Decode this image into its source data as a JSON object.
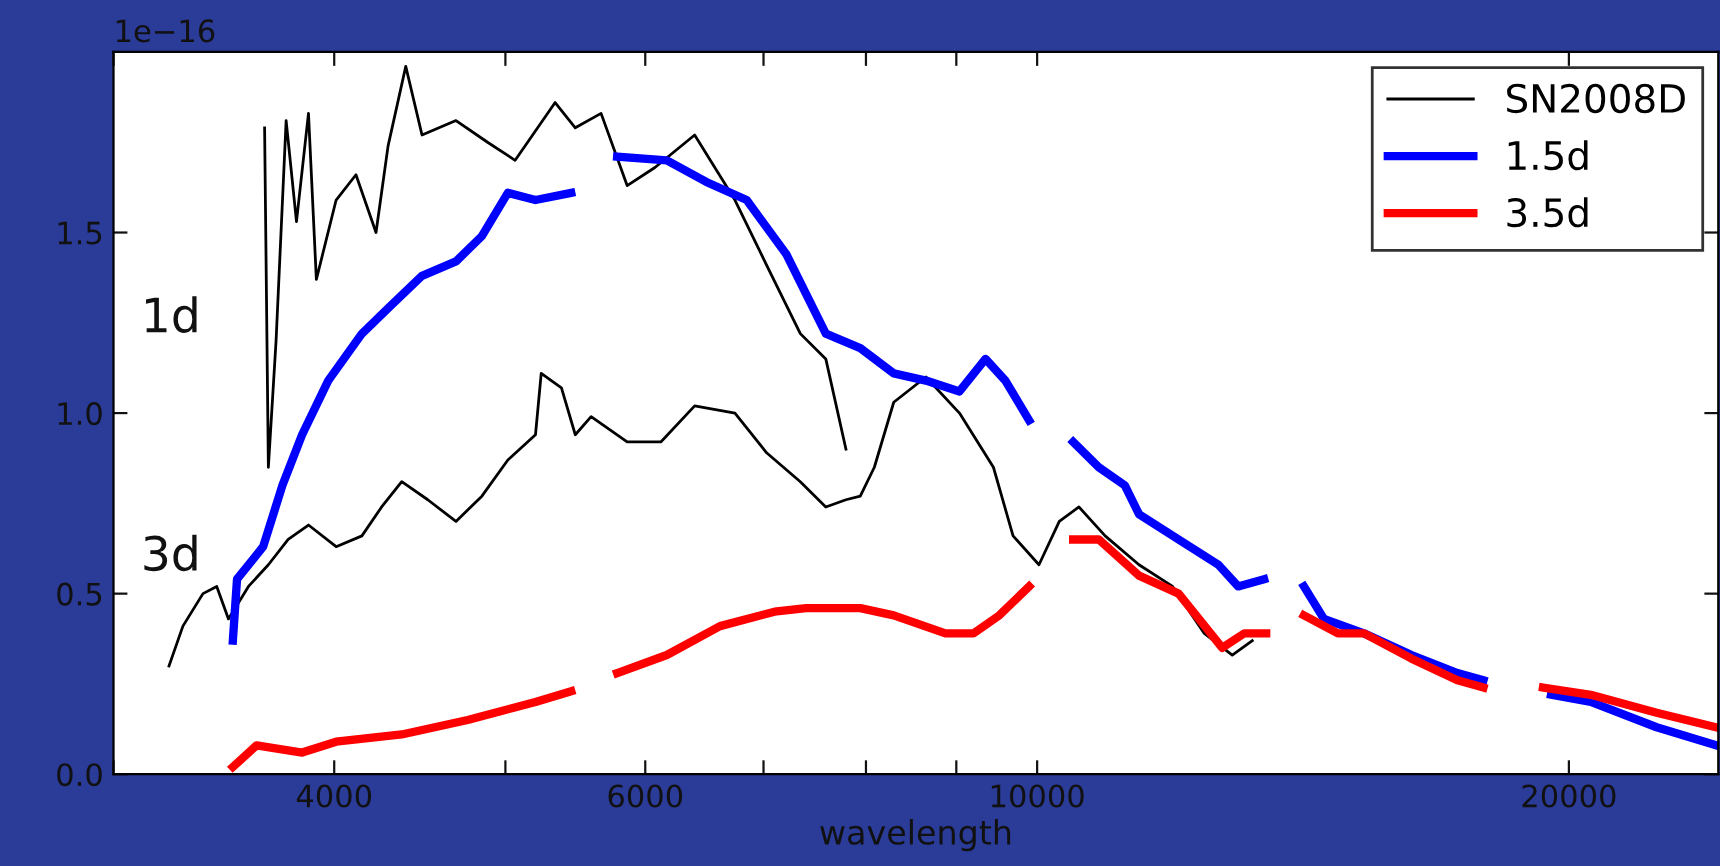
{
  "chart_data": {
    "type": "line",
    "xlabel": "wavelength",
    "log": "x",
    "legend": "top right",
    "grid": false,
    "xlim": [
      3000,
      24300
    ],
    "ylim": [
      0,
      2.0
    ],
    "xticks": [
      {
        "value": 3000,
        "label": null
      },
      4000,
      {
        "value": 5000,
        "label": null
      },
      6000,
      {
        "value": 7000,
        "label": null
      },
      {
        "value": 8000,
        "label": null
      },
      {
        "value": 9000,
        "label": null
      },
      10000,
      20000
    ],
    "yticks": [
      {
        "value": 0,
        "label": "0.0"
      },
      0.5,
      {
        "value": 1,
        "label": "1.0"
      },
      1.5
    ],
    "annotations": [
      "1e−16",
      "1d",
      "3d"
    ],
    "series": [
      {
        "name": "SN2008D",
        "color": "#000000",
        "x": [
          3653,
          3671,
          3708,
          3757,
          3808,
          3868,
          3908,
          4010,
          4115,
          4224,
          4291,
          4391,
          4485,
          4688,
          4885,
          5064,
          5335,
          5477,
          5664,
          5860,
          6076,
          6399,
          6744,
          7028,
          7344,
          7592,
          7794
        ],
        "values": [
          1.79,
          0.85,
          1.2,
          1.81,
          1.53,
          1.83,
          1.37,
          1.59,
          1.66,
          1.5,
          1.74,
          1.96,
          1.77,
          1.81,
          1.75,
          1.7,
          1.86,
          1.79,
          1.83,
          1.63,
          1.68,
          1.77,
          1.59,
          1.41,
          1.22,
          1.15,
          0.9
        ]
      },
      {
        "color": "#000000",
        "x": [
          3225,
          3284,
          3371,
          3432,
          3485,
          3577,
          3671,
          3767,
          3868,
          4010,
          4147,
          4255,
          4368,
          4519,
          4688,
          4849,
          5016,
          5200,
          5239,
          5379,
          5477,
          5591,
          5860,
          6123,
          6399,
          6744,
          7028,
          7344,
          7592,
          7794,
          7941,
          8088,
          8295,
          8650,
          9037,
          9446,
          9691,
          10024,
          10293,
          10560,
          10927,
          11420,
          11931,
          12435,
          12896,
          13237
        ],
        "values": [
          0.3,
          0.41,
          0.5,
          0.52,
          0.43,
          0.52,
          0.58,
          0.65,
          0.69,
          0.63,
          0.66,
          0.74,
          0.81,
          0.76,
          0.7,
          0.77,
          0.87,
          0.94,
          1.11,
          1.07,
          0.94,
          0.99,
          0.92,
          0.92,
          1.02,
          1.0,
          0.89,
          0.81,
          0.74,
          0.76,
          0.77,
          0.85,
          1.03,
          1.1,
          1.0,
          0.85,
          0.66,
          0.58,
          0.7,
          0.74,
          0.66,
          0.58,
          0.52,
          0.39,
          0.33,
          0.37
        ]
      },
      {
        "name": "1.5d",
        "color": "#0000ff",
        "x": [
          3505,
          3524,
          3646,
          3739,
          3836,
          3969,
          4147,
          4291,
          4485,
          4688,
          4849,
          5016,
          5200,
          5448,
          5600,
          5784,
          6171,
          6497,
          6848,
          7211,
          7592,
          7941,
          8295,
          8650,
          9037,
          9349,
          9594,
          9896,
          10200,
          10481,
          10836,
          11211,
          11420,
          12025,
          12665,
          12995,
          13443,
          13800,
          14159,
          14533,
          15313,
          16292,
          17295,
          17892,
          18700,
          19540,
          20580,
          22424,
          24233
        ],
        "values": [
          0.37,
          0.54,
          0.63,
          0.8,
          0.94,
          1.09,
          1.22,
          1.29,
          1.38,
          1.42,
          1.49,
          1.61,
          1.59,
          1.61,
          null,
          1.71,
          1.7,
          1.64,
          1.59,
          1.44,
          1.22,
          1.18,
          1.11,
          1.09,
          1.06,
          1.15,
          1.09,
          0.98,
          null,
          0.92,
          0.85,
          0.8,
          0.72,
          0.65,
          0.58,
          0.52,
          0.54,
          null,
          0.52,
          0.43,
          0.39,
          0.33,
          0.28,
          0.26,
          null,
          0.22,
          0.2,
          0.13,
          0.08
        ]
      },
      {
        "name": "3.5d",
        "color": "#ff0000",
        "x": [
          3505,
          3615,
          3836,
          4010,
          4368,
          4760,
          5200,
          5448,
          5600,
          5784,
          6171,
          6614,
          7101,
          7400,
          7941,
          8295,
          8873,
          9204,
          9519,
          9896,
          10200,
          10481,
          10836,
          11420,
          12025,
          12729,
          13099,
          13479,
          13800,
          14159,
          14800,
          15313,
          16292,
          17295,
          17892,
          18600,
          19336,
          20580,
          22424,
          24233
        ],
        "values": [
          0.02,
          0.08,
          0.06,
          0.09,
          0.11,
          0.15,
          0.2,
          0.23,
          null,
          0.28,
          0.33,
          0.41,
          0.45,
          0.46,
          0.46,
          0.44,
          0.39,
          0.39,
          0.44,
          0.52,
          null,
          0.65,
          0.65,
          0.55,
          0.5,
          0.35,
          0.39,
          0.39,
          null,
          0.44,
          0.39,
          0.39,
          0.32,
          0.26,
          0.24,
          null,
          0.24,
          0.22,
          0.17,
          0.13
        ]
      }
    ]
  }
}
